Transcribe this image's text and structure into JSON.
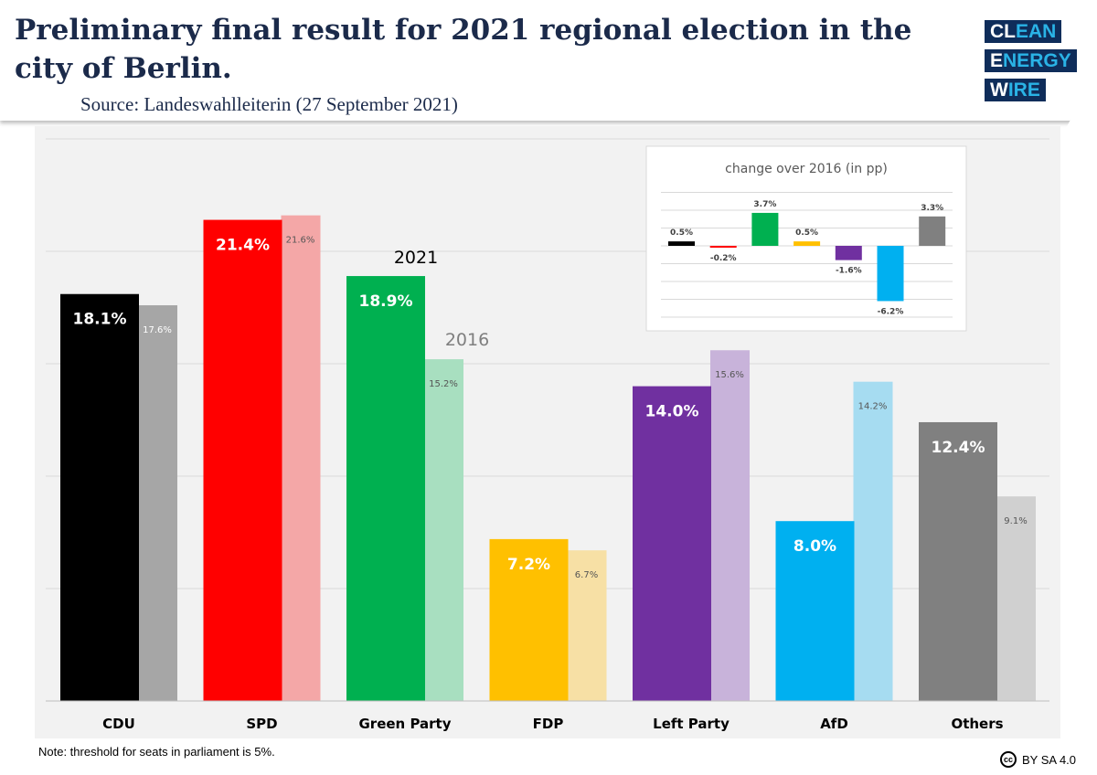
{
  "header": {
    "title": "Preliminary final result for 2021 regional election in the city of Berlin.",
    "source": "Source: Landeswahlleiterin (27 September 2021)"
  },
  "logo": {
    "line1": [
      "CL",
      "EAN"
    ],
    "line2": [
      "E",
      "NERGY"
    ],
    "line3": [
      "W",
      "IRE"
    ]
  },
  "chart_data": [
    {
      "type": "bar",
      "categories": [
        "CDU",
        "SPD",
        "Green Party",
        "FDP",
        "Left Party",
        "AfD",
        "Others"
      ],
      "series": [
        {
          "name": "2021",
          "values": [
            18.1,
            21.4,
            18.9,
            7.2,
            14.0,
            8.0,
            12.4
          ],
          "labels": [
            "18.1%",
            "21.4%",
            "18.9%",
            "7.2%",
            "14.0%",
            "8.0%",
            "12.4%"
          ]
        },
        {
          "name": "2016",
          "values": [
            17.6,
            21.6,
            15.2,
            6.7,
            15.6,
            14.2,
            9.1
          ],
          "labels": [
            "17.6%",
            "21.6%",
            "15.2%",
            "6.7%",
            "15.6%",
            "14.2%",
            "9.1%"
          ]
        }
      ],
      "colors_2021": [
        "#000000",
        "#ff0000",
        "#00b050",
        "#ffc000",
        "#7030a0",
        "#00b0f0",
        "#808080"
      ],
      "colors_2016": [
        "#a6a6a6",
        "#f4a7a7",
        "#a8dfc0",
        "#f7e0a5",
        "#c8b3da",
        "#a6dcf1",
        "#d0d0d0"
      ],
      "ylim": [
        0,
        25
      ],
      "grid": true
    },
    {
      "type": "bar",
      "title": "change over 2016 (in pp)",
      "categories": [
        "CDU",
        "SPD",
        "Green Party",
        "FDP",
        "Left Party",
        "AfD",
        "Others"
      ],
      "values": [
        0.5,
        -0.2,
        3.7,
        0.5,
        -1.6,
        -6.2,
        3.3
      ],
      "labels": [
        "0.5%",
        "-0.2%",
        "3.7%",
        "0.5%",
        "-1.6%",
        "-6.2%",
        "3.3%"
      ],
      "colors": [
        "#000000",
        "#ff0000",
        "#00b050",
        "#ffc000",
        "#7030a0",
        "#00b0f0",
        "#808080"
      ],
      "ylim": [
        -8,
        6
      ],
      "grid": true
    }
  ],
  "footer": {
    "note": "Note: threshold for seats in parliament is 5%.",
    "license": "BY SA 4.0",
    "cc": "cc"
  }
}
